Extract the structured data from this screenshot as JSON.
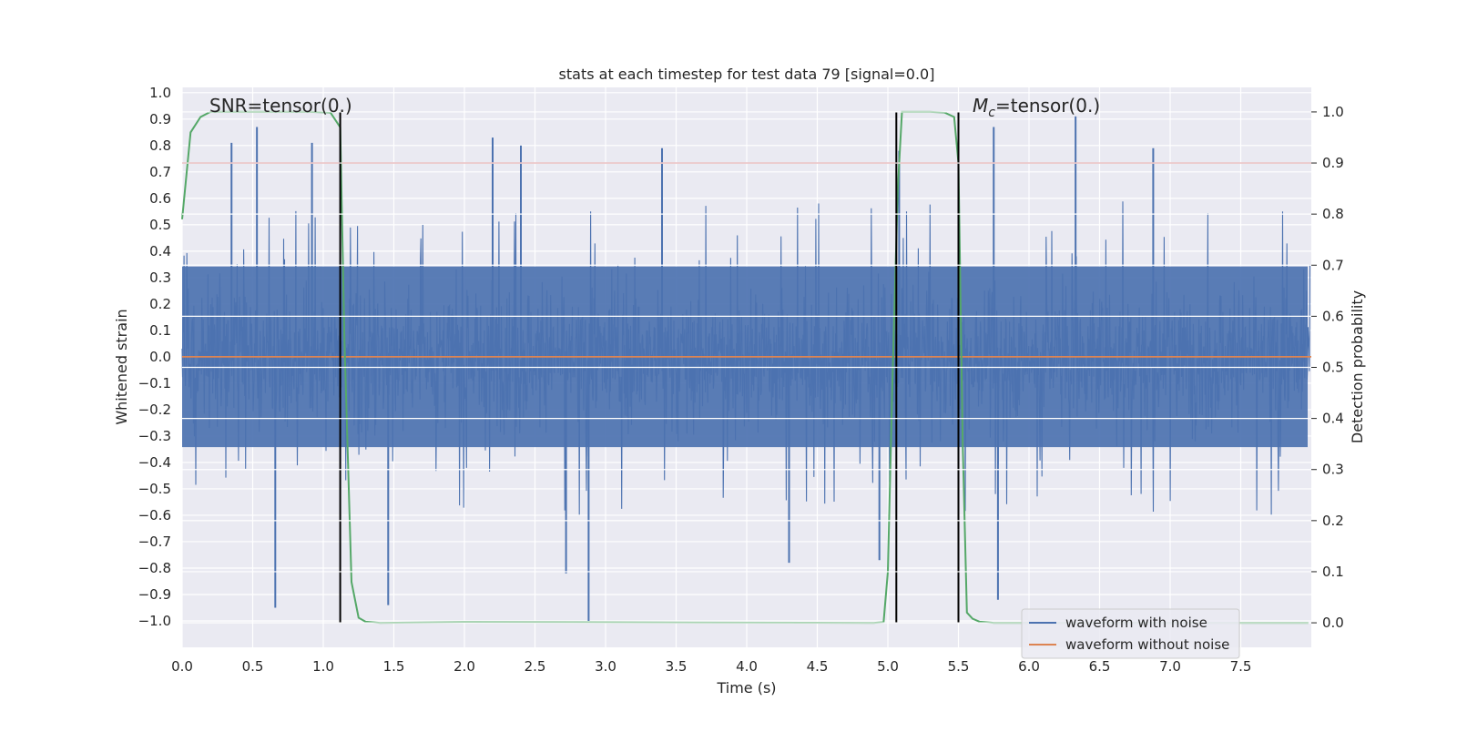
{
  "chart_data": {
    "type": "line",
    "title": "stats at each timestep for test data 79 [signal=0.0]",
    "xlabel": "Time (s)",
    "ylabel": "Whitened strain",
    "y2label": "Detection probability",
    "xlim": [
      0.0,
      8.0
    ],
    "ylim": [
      -1.1,
      1.02
    ],
    "y2lim": [
      -0.048,
      1.048
    ],
    "xticks": [
      "0.0",
      "0.5",
      "1.0",
      "1.5",
      "2.0",
      "2.5",
      "3.0",
      "3.5",
      "4.0",
      "4.5",
      "5.0",
      "5.5",
      "6.0",
      "6.5",
      "7.0",
      "7.5"
    ],
    "yticks": [
      "1.0",
      "0.9",
      "0.8",
      "0.7",
      "0.6",
      "0.5",
      "0.4",
      "0.3",
      "0.2",
      "0.1",
      "0.0",
      "−0.1",
      "−0.2",
      "−0.3",
      "−0.4",
      "−0.5",
      "−0.6",
      "−0.7",
      "−0.8",
      "−0.9",
      "−1.0"
    ],
    "y2ticks": [
      "1.0",
      "0.9",
      "0.8",
      "0.7",
      "0.6",
      "0.5",
      "0.4",
      "0.3",
      "0.2",
      "0.1",
      "0.0"
    ],
    "grid": true,
    "legend_position": "lower-right",
    "series": [
      {
        "name": "waveform with noise",
        "color": "#4c72b0",
        "axis": "left",
        "kind": "noise",
        "typical_amplitude": 0.38,
        "peak_max": 0.91,
        "peak_min": -1.0,
        "spikes": [
          {
            "x": 0.66,
            "y": -0.95
          },
          {
            "x": 0.53,
            "y": 0.87
          },
          {
            "x": 0.35,
            "y": 0.81
          },
          {
            "x": 1.46,
            "y": -0.94
          },
          {
            "x": 2.2,
            "y": 0.83
          },
          {
            "x": 2.4,
            "y": 0.8
          },
          {
            "x": 2.88,
            "y": -1.0
          },
          {
            "x": 2.72,
            "y": -0.82
          },
          {
            "x": 3.4,
            "y": 0.79
          },
          {
            "x": 4.3,
            "y": -0.78
          },
          {
            "x": 5.08,
            "y": 0.78
          },
          {
            "x": 5.75,
            "y": 0.87
          },
          {
            "x": 5.78,
            "y": -0.92
          },
          {
            "x": 6.33,
            "y": 0.91
          },
          {
            "x": 6.88,
            "y": 0.79
          },
          {
            "x": 4.94,
            "y": -0.77
          },
          {
            "x": 0.92,
            "y": 0.81
          }
        ]
      },
      {
        "name": "waveform without noise",
        "color": "#dd8452",
        "axis": "left",
        "x": [
          0.0,
          8.0
        ],
        "y": [
          0.0,
          0.0
        ]
      },
      {
        "name": "",
        "color": "#55a868",
        "axis": "right",
        "x": [
          0.0,
          0.06,
          0.13,
          0.2,
          0.3,
          0.6,
          0.9,
          1.05,
          1.12,
          1.15,
          1.2,
          1.25,
          1.3,
          1.4,
          2.0,
          4.9,
          4.97,
          5.0,
          5.03,
          5.07,
          5.1,
          5.2,
          5.3,
          5.4,
          5.47,
          5.5,
          5.53,
          5.56,
          5.6,
          5.65,
          5.75,
          7.98
        ],
        "y": [
          0.79,
          0.96,
          0.99,
          1.0,
          1.0,
          1.0,
          1.0,
          0.999,
          0.97,
          0.55,
          0.08,
          0.01,
          0.002,
          0.0,
          0.001,
          0.0,
          0.001,
          0.1,
          0.45,
          0.85,
          1.0,
          1.0,
          1.0,
          0.999,
          0.99,
          0.9,
          0.35,
          0.02,
          0.008,
          0.002,
          0.0,
          0.0
        ]
      }
    ],
    "threshold": {
      "axis": "right",
      "y": 0.9,
      "color": "#c44e52"
    },
    "vlines": [
      1.12,
      5.06,
      5.5
    ],
    "annotations": {
      "snr": "SNR=tensor(0.)",
      "mc_symbol": "M",
      "mc_subscript": "c",
      "mc_text": "=tensor(0.)"
    }
  }
}
